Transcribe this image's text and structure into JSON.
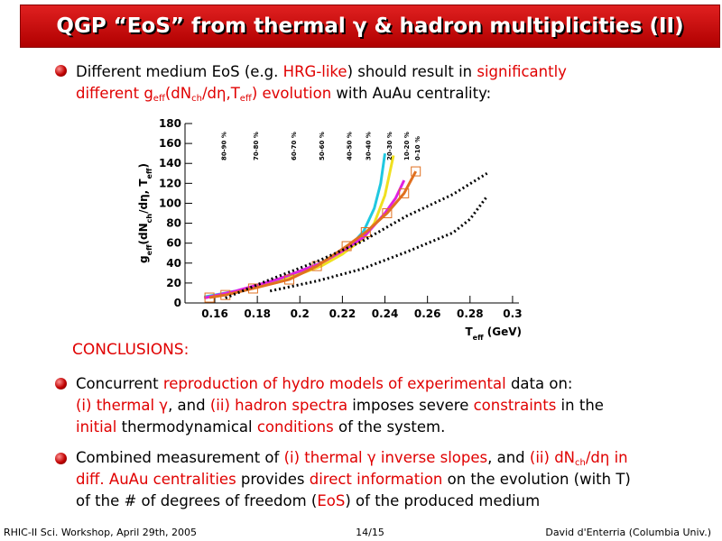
{
  "header": {
    "title": "QGP “EoS” from thermal γ & hadron multiplicities (II)"
  },
  "intro": {
    "lines": [
      [
        "Different medium EoS (e.g. ",
        {
          "text": "HRG-like",
          "color": "#e00000"
        },
        ") should result in ",
        {
          "text": "significantly",
          "color": "#e00000"
        }
      ],
      [
        {
          "text": "different g",
          "color": "#e00000"
        },
        {
          "text": "eff",
          "color": "#e00000",
          "sub": true
        },
        {
          "text": "(dN",
          "color": "#e00000"
        },
        {
          "text": "ch",
          "color": "#e00000",
          "sub": true
        },
        {
          "text": "/dη,T",
          "color": "#e00000"
        },
        {
          "text": "eff",
          "color": "#e00000",
          "sub": true
        },
        {
          "text": ") evolution",
          "color": "#e00000"
        },
        " with AuAu centrality:"
      ]
    ]
  },
  "chart_data": {
    "type": "line",
    "y_label": [
      "g",
      {
        "text": "eff",
        "sub": true
      },
      "(dN",
      {
        "text": "ch",
        "sub": true
      },
      "/dη, T",
      {
        "text": "eff",
        "sub": true
      },
      ")"
    ],
    "x_label": [
      "T",
      {
        "text": "eff",
        "sub": true
      },
      " (GeV)"
    ],
    "xlim": [
      0.146,
      0.303
    ],
    "ylim": [
      0,
      180
    ],
    "xticks": [
      0.16,
      0.18,
      0.2,
      0.22,
      0.24,
      0.26,
      0.28,
      0.3
    ],
    "yticks": [
      0,
      20,
      40,
      60,
      80,
      100,
      120,
      140,
      160,
      180
    ],
    "annotations": [
      {
        "text": "80-90 %",
        "x": 0.164
      },
      {
        "text": "70-80 %",
        "x": 0.179
      },
      {
        "text": "60-70 %",
        "x": 0.197
      },
      {
        "text": "50-60 %",
        "x": 0.21
      },
      {
        "text": "40-50 %",
        "x": 0.223
      },
      {
        "text": "30-40 %",
        "x": 0.232
      },
      {
        "text": "20-30 %",
        "x": 0.242
      },
      {
        "text": "10-20 %",
        "x": 0.25
      },
      {
        "text": "0-10 %",
        "x": 0.255
      }
    ],
    "series": [
      {
        "color": "#20c8e0",
        "style": "solid",
        "x": [
          0.155,
          0.17,
          0.19,
          0.21,
          0.225,
          0.23,
          0.235,
          0.238,
          0.24
        ],
        "values": [
          6,
          12,
          23,
          40,
          60,
          72,
          95,
          120,
          150
        ]
      },
      {
        "color": "#f0e020",
        "style": "solid",
        "x": [
          0.155,
          0.17,
          0.19,
          0.21,
          0.22,
          0.23,
          0.235,
          0.24,
          0.244
        ],
        "values": [
          5,
          11,
          21,
          37,
          49,
          65,
          80,
          108,
          148
        ]
      },
      {
        "color": "#e020e0",
        "style": "solid",
        "x": [
          0.155,
          0.17,
          0.19,
          0.21,
          0.22,
          0.23,
          0.24,
          0.245,
          0.249
        ],
        "values": [
          5,
          12,
          24,
          40,
          52,
          66,
          90,
          105,
          123
        ]
      },
      {
        "color": "#e07020",
        "style": "solid",
        "marker": "square",
        "x": [
          0.1575,
          0.165,
          0.178,
          0.195,
          0.208,
          0.222,
          0.231,
          0.241,
          0.249,
          0.2545
        ],
        "values": [
          5.4,
          8,
          14.5,
          23.5,
          37,
          57,
          71,
          90,
          110,
          132
        ]
      },
      {
        "color": "#000000",
        "style": "dotted",
        "x": [
          0.165,
          0.186,
          0.208,
          0.229,
          0.25,
          0.272,
          0.288
        ],
        "values": [
          5,
          23.5,
          41.6,
          61.5,
          87,
          109,
          130
        ]
      },
      {
        "color": "#000000",
        "style": "dotted",
        "x": [
          0.186,
          0.208,
          0.229,
          0.25,
          0.272,
          0.28,
          0.288
        ],
        "values": [
          12,
          22,
          34,
          51,
          70.5,
          84,
          107
        ]
      }
    ]
  },
  "conclusions": {
    "heading": "CONCLUSIONS:",
    "bullets": [
      {
        "lines": [
          [
            "Concurrent ",
            {
              "text": "reproduction of hydro models of experimental",
              "color": "#e00000"
            },
            " data on:"
          ],
          [
            {
              "text": "(i) thermal γ",
              "color": "#e00000"
            },
            ", and ",
            {
              "text": "(ii) hadron spectra",
              "color": "#e00000"
            },
            " imposes severe ",
            {
              "text": "constraints",
              "color": "#e00000"
            },
            " in the"
          ],
          [
            {
              "text": "initial",
              "color": "#e00000"
            },
            " thermodynamical ",
            {
              "text": "conditions",
              "color": "#e00000"
            },
            " of the system."
          ]
        ]
      },
      {
        "lines": [
          [
            "Combined measurement of ",
            {
              "text": "(i) thermal γ inverse slopes",
              "color": "#e00000"
            },
            ", and ",
            {
              "text": "(ii) dN",
              "color": "#e00000"
            },
            {
              "text": "ch",
              "color": "#e00000",
              "sub": true
            },
            {
              "text": "/dη in",
              "color": "#e00000"
            }
          ],
          [
            {
              "text": "diff. AuAu centralities",
              "color": "#e00000"
            },
            " provides ",
            {
              "text": "direct information",
              "color": "#e00000"
            },
            " on the evolution (with T)"
          ],
          [
            "of the # of degrees of freedom (",
            {
              "text": "EoS",
              "color": "#e00000"
            },
            ") of the produced medium"
          ]
        ]
      }
    ]
  },
  "footer": {
    "left": "RHIC-II Sci. Workshop, April 29th, 2005",
    "center": "14/15",
    "right": "David d'Enterria (Columbia Univ.)"
  }
}
